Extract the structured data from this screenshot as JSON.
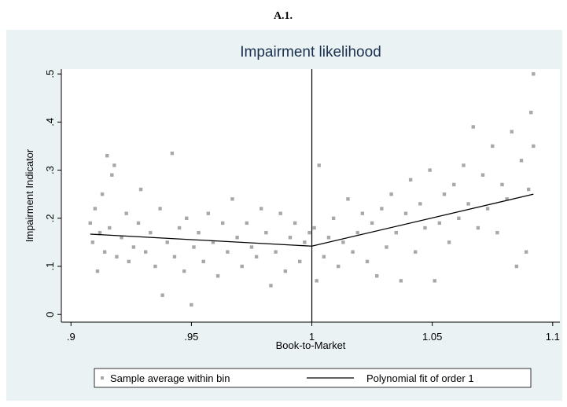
{
  "heading": "A.1.",
  "chart_data": {
    "type": "scatter",
    "title": "Impairment likelihood",
    "x_label": "Book-to-Market",
    "y_label": "Impairment Indicator",
    "xlim": [
      0.896,
      1.103
    ],
    "ylim": [
      -0.016,
      0.51
    ],
    "xticks": [
      {
        "value": 0.9,
        "label": ".9"
      },
      {
        "value": 0.95,
        "label": ".95"
      },
      1,
      1.05,
      1.1
    ],
    "yticks": [
      0,
      {
        "value": 0.1,
        "label": ".1"
      },
      {
        "value": 0.2,
        "label": ".2"
      },
      {
        "value": 0.3,
        "label": ".3"
      },
      {
        "value": 0.4,
        "label": ".4"
      },
      {
        "value": 0.5,
        "label": ".5"
      }
    ],
    "xline": 1,
    "series": [
      {
        "name": "Sample average within bin",
        "mark": "point",
        "color": "#a8a8a8",
        "x": [
          0.908,
          0.909,
          0.91,
          0.911,
          0.912,
          0.913,
          0.914,
          0.915,
          0.916,
          0.917,
          0.918,
          0.919,
          0.921,
          0.923,
          0.924,
          0.926,
          0.928,
          0.929,
          0.931,
          0.933,
          0.935,
          0.937,
          0.938,
          0.94,
          0.942,
          0.943,
          0.945,
          0.947,
          0.948,
          0.95,
          0.951,
          0.953,
          0.955,
          0.957,
          0.959,
          0.961,
          0.963,
          0.965,
          0.967,
          0.969,
          0.971,
          0.973,
          0.975,
          0.977,
          0.979,
          0.981,
          0.983,
          0.985,
          0.987,
          0.989,
          0.991,
          0.993,
          0.995,
          0.997,
          0.999,
          1.001,
          1.002,
          1.003,
          1.005,
          1.007,
          1.009,
          1.011,
          1.013,
          1.015,
          1.017,
          1.019,
          1.021,
          1.023,
          1.025,
          1.027,
          1.029,
          1.031,
          1.033,
          1.035,
          1.037,
          1.039,
          1.041,
          1.043,
          1.045,
          1.047,
          1.049,
          1.051,
          1.053,
          1.055,
          1.057,
          1.059,
          1.061,
          1.063,
          1.065,
          1.067,
          1.069,
          1.071,
          1.073,
          1.075,
          1.077,
          1.079,
          1.081,
          1.083,
          1.085,
          1.087,
          1.089,
          1.09,
          1.091,
          1.092,
          1.092
        ],
        "values": [
          0.19,
          0.15,
          0.22,
          0.09,
          0.17,
          0.25,
          0.13,
          0.33,
          0.18,
          0.29,
          0.31,
          0.12,
          0.16,
          0.21,
          0.11,
          0.14,
          0.19,
          0.26,
          0.13,
          0.17,
          0.1,
          0.22,
          0.04,
          0.15,
          0.335,
          0.12,
          0.18,
          0.09,
          0.2,
          0.02,
          0.14,
          0.17,
          0.11,
          0.21,
          0.15,
          0.08,
          0.19,
          0.13,
          0.24,
          0.16,
          0.1,
          0.19,
          0.14,
          0.12,
          0.22,
          0.17,
          0.06,
          0.13,
          0.21,
          0.09,
          0.16,
          0.19,
          0.11,
          0.15,
          0.17,
          0.18,
          0.07,
          0.31,
          0.12,
          0.16,
          0.2,
          0.1,
          0.15,
          0.24,
          0.13,
          0.17,
          0.21,
          0.11,
          0.19,
          0.08,
          0.22,
          0.14,
          0.25,
          0.17,
          0.07,
          0.21,
          0.28,
          0.13,
          0.23,
          0.18,
          0.3,
          0.07,
          0.19,
          0.25,
          0.15,
          0.27,
          0.2,
          0.31,
          0.23,
          0.39,
          0.18,
          0.29,
          0.22,
          0.35,
          0.17,
          0.27,
          0.24,
          0.38,
          0.1,
          0.32,
          0.13,
          0.26,
          0.42,
          0.5,
          0.35
        ]
      },
      {
        "name": "Polynomial fit of order 1",
        "mark": "line",
        "color": "#000000",
        "x": [
          0.908,
          1,
          1,
          1.092
        ],
        "values": [
          0.167,
          0.142,
          0.142,
          0.25
        ]
      }
    ]
  }
}
